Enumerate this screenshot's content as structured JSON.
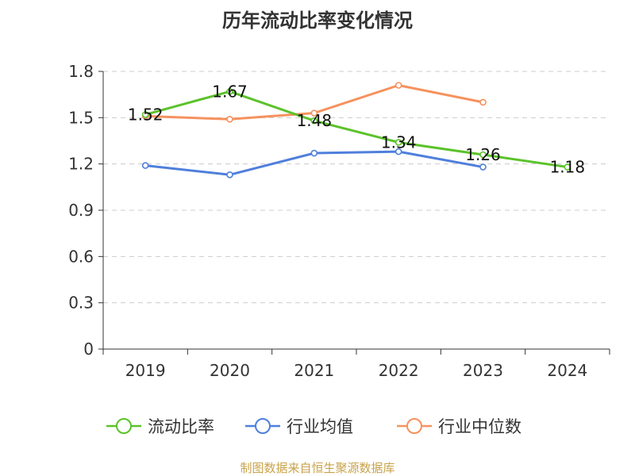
{
  "chart_data": {
    "type": "line",
    "title": "历年流动比率变化情况",
    "categories": [
      "2019",
      "2020",
      "2021",
      "2022",
      "2023",
      "2024"
    ],
    "ylim": [
      0,
      1.8
    ],
    "yticks": [
      "0",
      "0.3",
      "0.6",
      "0.9",
      "1.2",
      "1.5",
      "1.8"
    ],
    "grid": true,
    "legend_position": "bottom",
    "series": [
      {
        "name": "流动比率",
        "color": "#5bc22a",
        "values": [
          1.52,
          1.67,
          1.48,
          1.34,
          1.26,
          1.18
        ],
        "labels": [
          "1.52",
          "1.67",
          "1.48",
          "1.34",
          "1.26",
          "1.18"
        ]
      },
      {
        "name": "行业均值",
        "color": "#4f7fdc",
        "values": [
          1.19,
          1.13,
          1.27,
          1.28,
          1.18,
          null
        ]
      },
      {
        "name": "行业中位数",
        "color": "#f5925e",
        "values": [
          1.51,
          1.49,
          1.53,
          1.71,
          1.6,
          null
        ]
      }
    ]
  },
  "footer": {
    "source": "制图数据来自恒生聚源数据库"
  }
}
